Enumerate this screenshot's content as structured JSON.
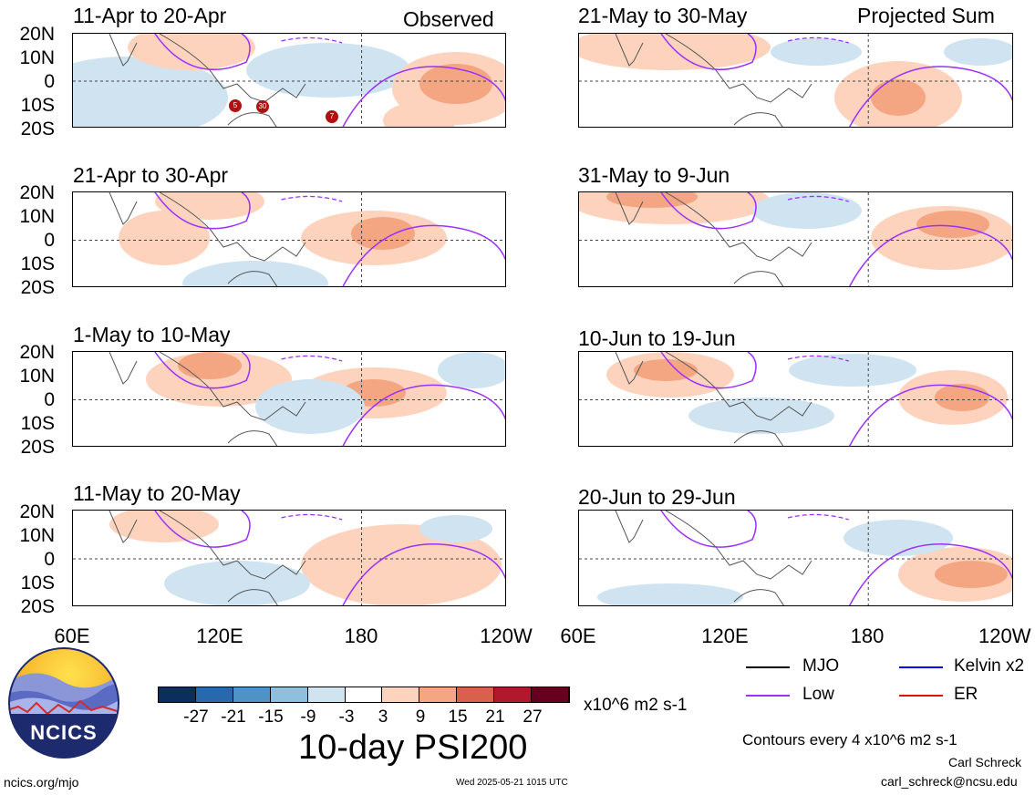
{
  "header": {
    "left_tag": "Observed",
    "right_tag": "Projected Sum"
  },
  "panels_left": [
    {
      "title": "11-Apr to 20-Apr"
    },
    {
      "title": "21-Apr to 30-Apr"
    },
    {
      "title": "1-May to 10-May"
    },
    {
      "title": "11-May to 20-May"
    }
  ],
  "panels_right": [
    {
      "title": "21-May to 30-May"
    },
    {
      "title": "31-May to 9-Jun"
    },
    {
      "title": "10-Jun to 19-Jun"
    },
    {
      "title": "20-Jun to 29-Jun"
    }
  ],
  "lat_labels": [
    "20N",
    "10N",
    "0",
    "10S",
    "20S"
  ],
  "lon_labels_left": [
    "60E",
    "120E",
    "180",
    "120W"
  ],
  "lon_labels_right": [
    "60E",
    "120E",
    "180",
    "120W"
  ],
  "colorbar": {
    "ticks": [
      "-27",
      "-21",
      "-15",
      "-9",
      "-3",
      "3",
      "9",
      "15",
      "21",
      "27"
    ],
    "units": "x10^6 m2 s-1",
    "colors": [
      "#0a2f5c",
      "#2a68ad",
      "#4f92c6",
      "#8ebfdd",
      "#cfe3f0",
      "#ffffff",
      "#fdd3bd",
      "#f4a582",
      "#d9604d",
      "#b2182b",
      "#67001f"
    ]
  },
  "main_title": "10-day PSI200",
  "legend": [
    {
      "label": "MJO",
      "color": "#000000"
    },
    {
      "label": "Kelvin x2",
      "color": "#0000ff"
    },
    {
      "label": "Low",
      "color": "#9b30ff"
    },
    {
      "label": "ER",
      "color": "#e01010"
    }
  ],
  "contour_note": "Contours every 4 x10^6 m2 s-1",
  "credit_name": "Carl Schreck",
  "credit_email": "carl_schreck@ncsu.edu",
  "site": "ncics.org/mjo",
  "timestamp": "Wed 2025-05-21 1015 UTC",
  "logo_text": "NCICS",
  "storm_markers": [
    "5",
    "30",
    "7"
  ]
}
